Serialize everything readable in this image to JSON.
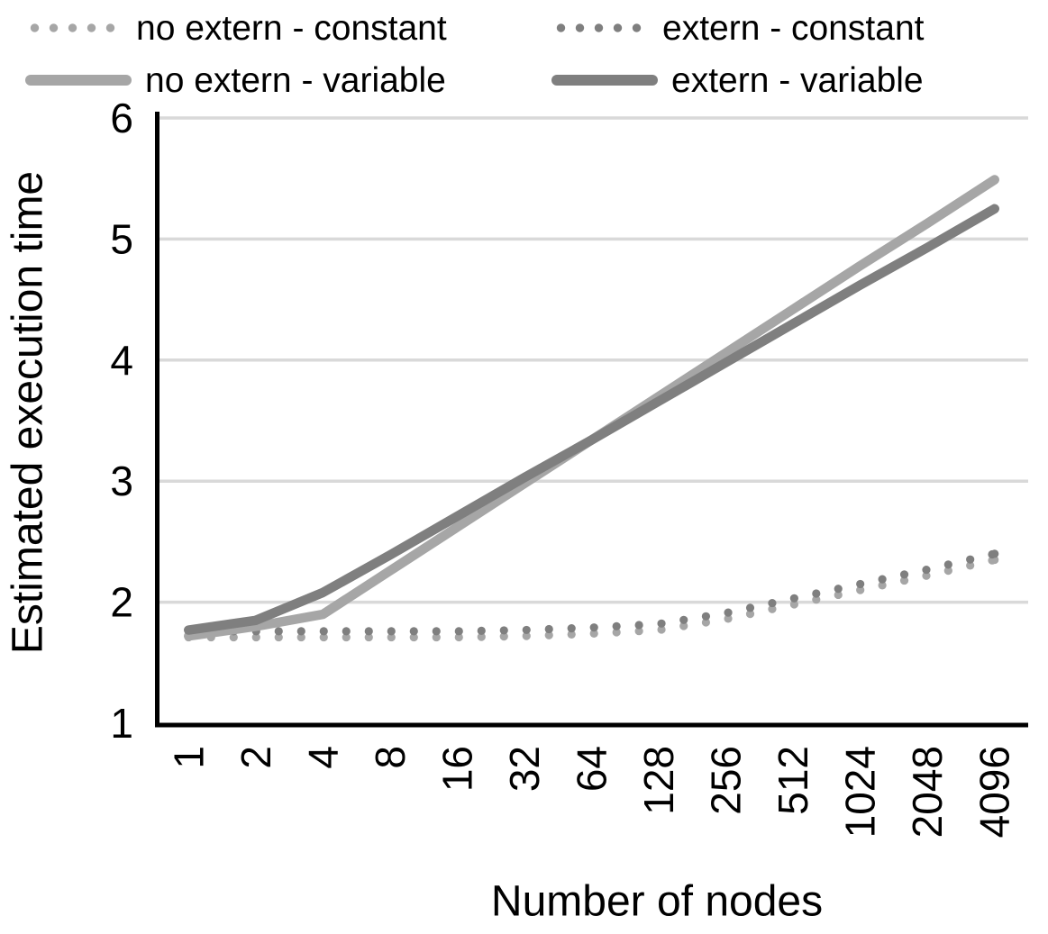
{
  "chart_data": {
    "type": "line",
    "title": "",
    "xlabel": "Number of nodes",
    "ylabel": "Estimated execution time",
    "x_scale": "log2-categorical",
    "categories": [
      "1",
      "2",
      "4",
      "8",
      "16",
      "32",
      "64",
      "128",
      "256",
      "512",
      "1024",
      "2048",
      "4096"
    ],
    "ylim": [
      1,
      6
    ],
    "yticks": [
      1,
      2,
      3,
      4,
      5,
      6
    ],
    "grid": "horizontal-only",
    "legend_position": "top",
    "series": [
      {
        "name": "no extern - constant",
        "style": "dotted",
        "color": "#a6a6a6",
        "values": [
          1.71,
          1.71,
          1.71,
          1.71,
          1.71,
          1.72,
          1.74,
          1.77,
          1.86,
          1.98,
          2.1,
          2.22,
          2.35
        ]
      },
      {
        "name": "extern - constant",
        "style": "dotted",
        "color": "#7f7f7f",
        "values": [
          1.76,
          1.76,
          1.76,
          1.76,
          1.76,
          1.77,
          1.79,
          1.82,
          1.91,
          2.03,
          2.15,
          2.27,
          2.4
        ]
      },
      {
        "name": "no extern - variable",
        "style": "solid",
        "color": "#a6a6a6",
        "values": [
          1.72,
          1.8,
          1.9,
          2.26,
          2.62,
          2.98,
          3.34,
          3.7,
          4.06,
          4.42,
          4.78,
          5.13,
          5.49
        ]
      },
      {
        "name": "extern - variable",
        "style": "solid",
        "color": "#7f7f7f",
        "values": [
          1.77,
          1.85,
          2.08,
          2.39,
          2.71,
          3.03,
          3.34,
          3.66,
          3.98,
          4.3,
          4.62,
          4.93,
          5.25
        ]
      }
    ],
    "colors": {
      "gridline": "#d9d9d9",
      "axis": "#000000",
      "tick_text": "#000000"
    }
  }
}
